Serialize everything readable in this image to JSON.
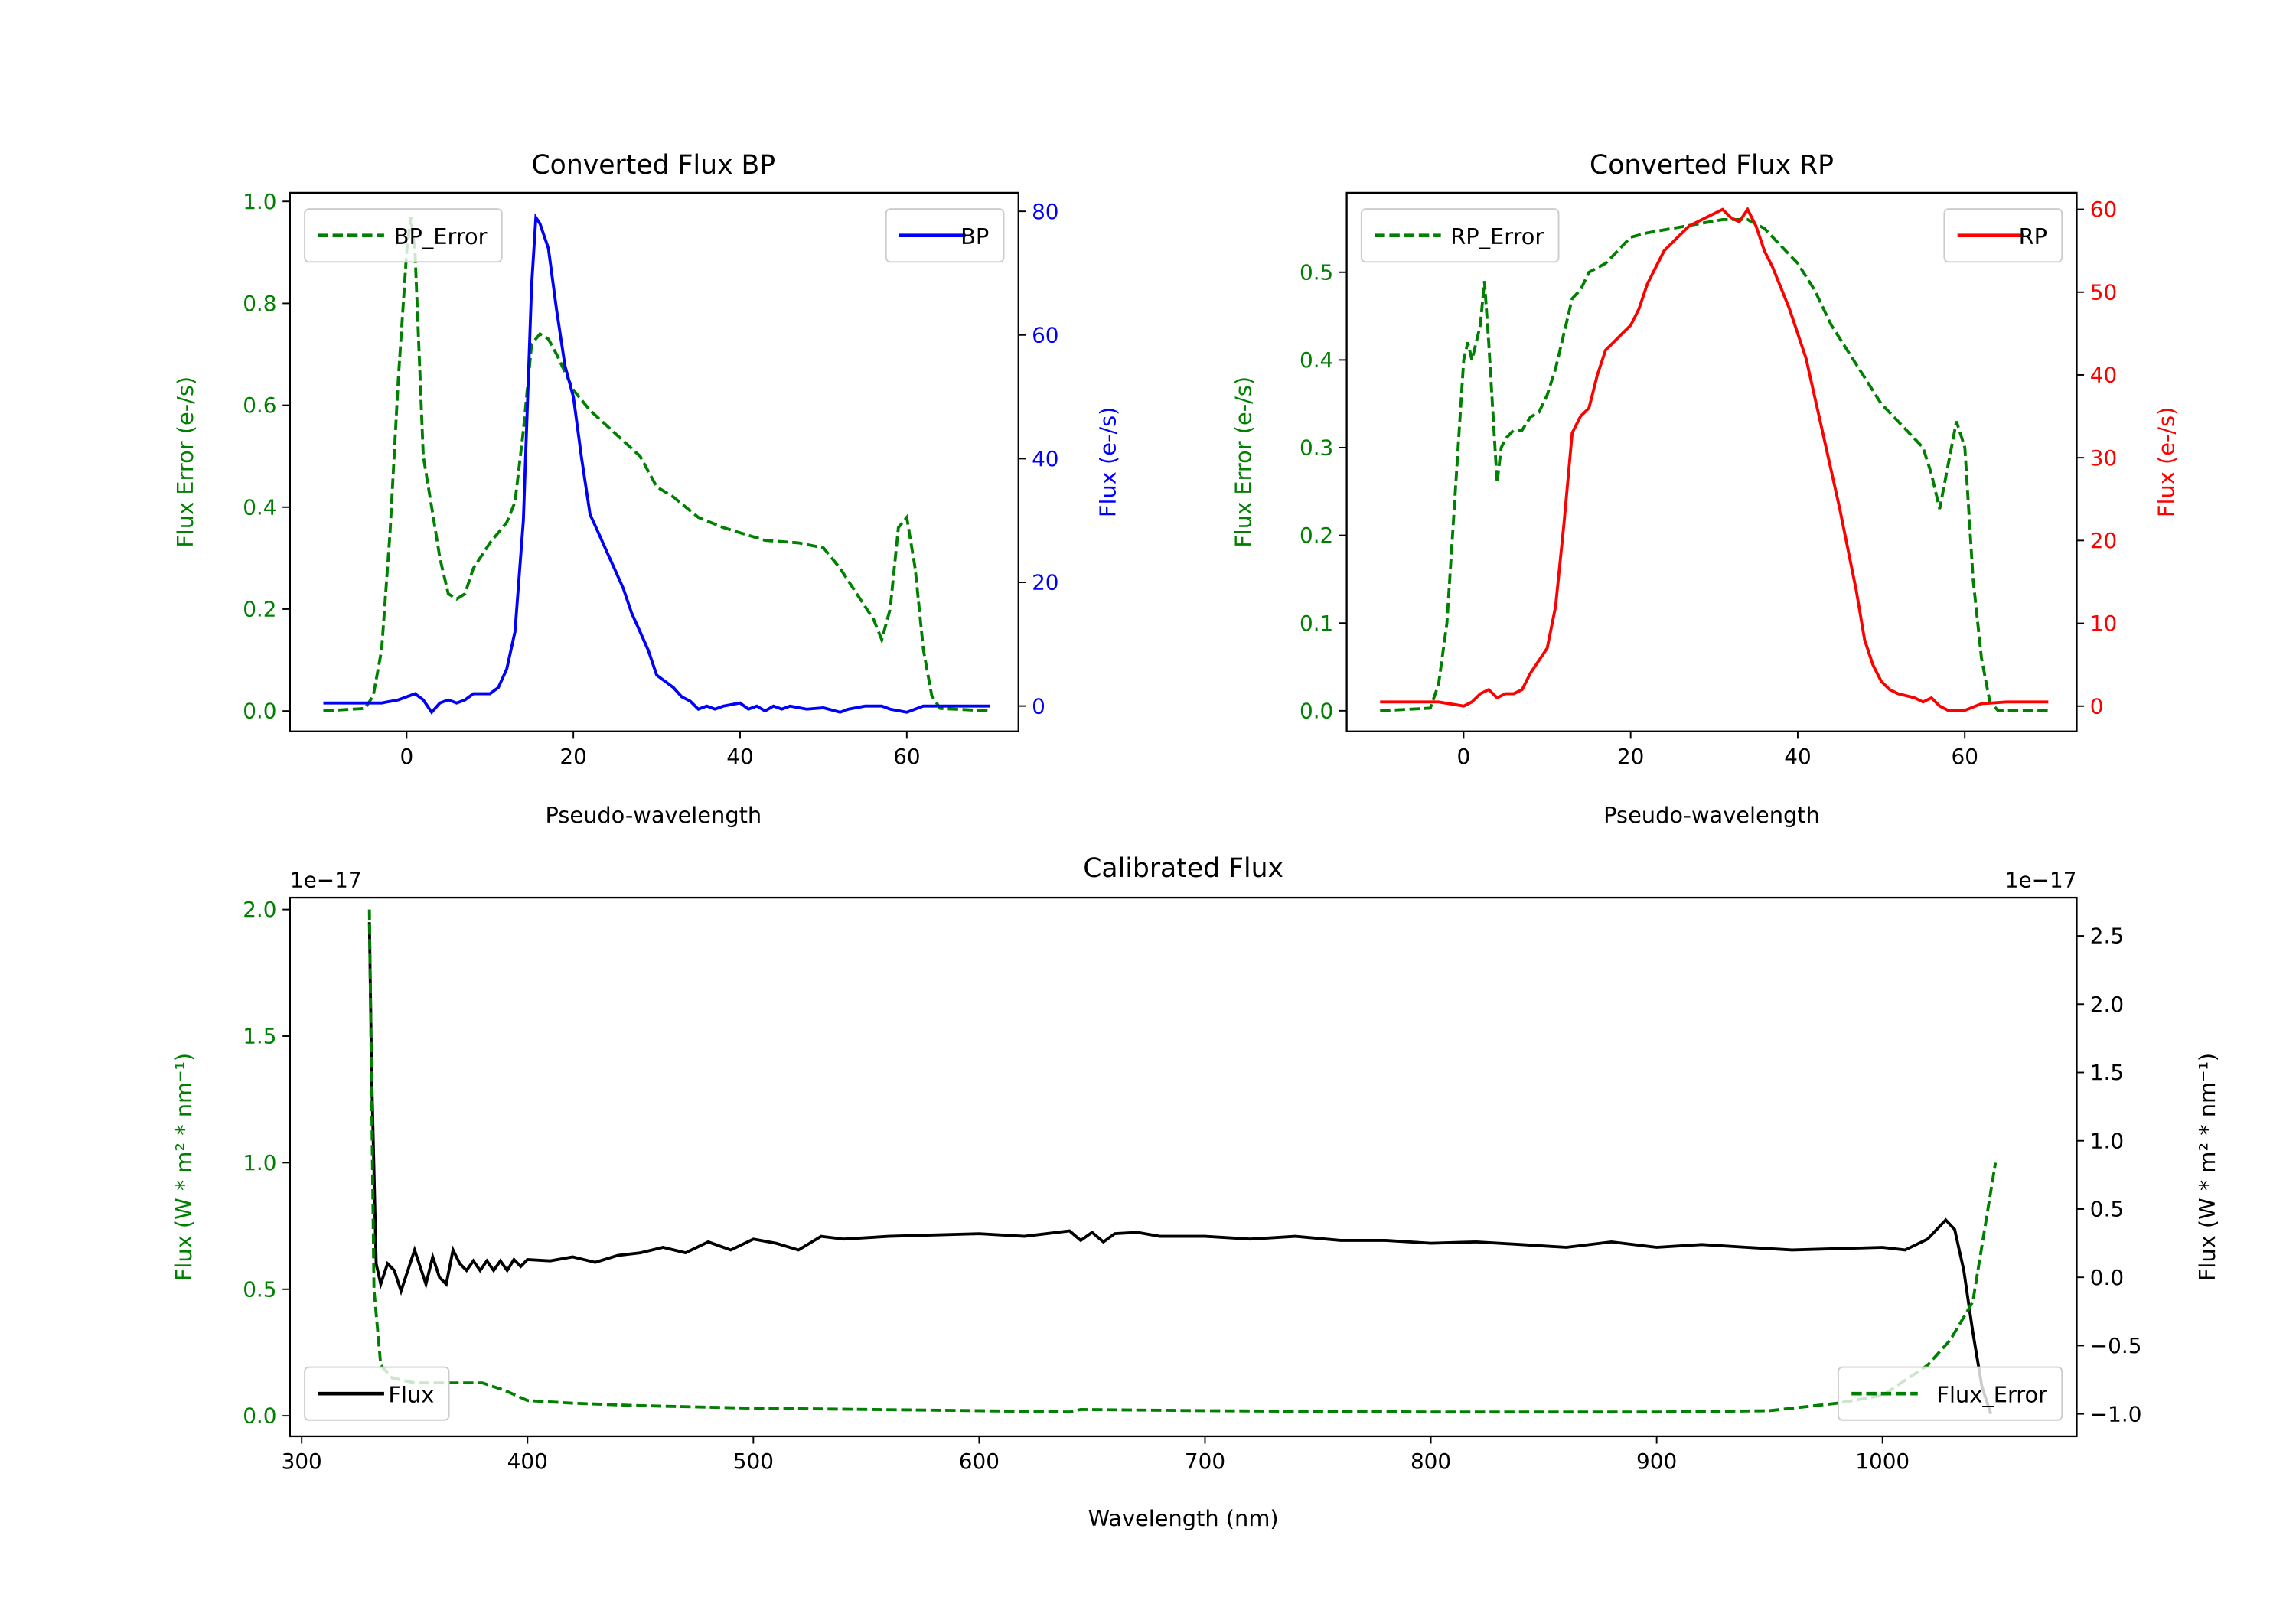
{
  "chart_data": [
    {
      "id": "bp",
      "type": "line",
      "title": "Converted Flux BP",
      "xlabel": "Pseudo-wavelength",
      "ylabel_left": "Flux Error (e-/s)",
      "ylabel_right": "Flux (e-/s)",
      "xlim": [
        -14,
        73.4
      ],
      "ylim_left": [
        -0.04,
        1.017
      ],
      "ylim_right": [
        -4.1,
        83
      ],
      "xticks": [
        0,
        20,
        40,
        60
      ],
      "xtick_labels": [
        "0",
        "20",
        "40",
        "60"
      ],
      "yticks_left": [
        0,
        0.2,
        0.4,
        0.6,
        0.8,
        1.0
      ],
      "ytick_labels_left": [
        "0.0",
        "0.2",
        "0.4",
        "0.6",
        "0.8",
        "1.0"
      ],
      "yticks_right": [
        0,
        20,
        40,
        60,
        80
      ],
      "ytick_labels_right": [
        "0",
        "20",
        "40",
        "60",
        "80"
      ],
      "left_color": "#008000",
      "right_color": "#0000ff",
      "series": [
        {
          "name": "BP_Error",
          "axis": "left",
          "style": "dashed",
          "color": "#008000",
          "legend": "upper-left",
          "x": [
            -10,
            -5,
            -4,
            -3,
            -2,
            -1,
            0,
            0.5,
            1,
            2,
            3,
            4,
            5,
            6,
            7,
            8,
            10,
            12,
            13,
            14,
            15,
            16,
            17,
            18,
            20,
            22,
            24,
            26,
            28,
            30,
            32,
            35,
            38,
            40,
            43,
            47,
            50,
            52,
            54,
            56,
            57,
            58,
            59,
            60,
            61,
            62,
            63,
            64,
            70
          ],
          "y": [
            0,
            0.005,
            0.03,
            0.12,
            0.35,
            0.65,
            0.9,
            0.97,
            0.9,
            0.5,
            0.4,
            0.3,
            0.23,
            0.22,
            0.23,
            0.28,
            0.33,
            0.37,
            0.41,
            0.55,
            0.72,
            0.74,
            0.73,
            0.7,
            0.63,
            0.59,
            0.56,
            0.53,
            0.5,
            0.44,
            0.42,
            0.38,
            0.36,
            0.35,
            0.335,
            0.33,
            0.32,
            0.28,
            0.23,
            0.18,
            0.14,
            0.2,
            0.36,
            0.38,
            0.28,
            0.12,
            0.03,
            0.005,
            0
          ]
        },
        {
          "name": "BP",
          "axis": "right",
          "style": "solid",
          "color": "#0000ff",
          "legend": "upper-right",
          "x": [
            -10,
            -3,
            -1,
            1,
            2,
            3,
            4,
            5,
            6,
            7,
            8,
            10,
            11,
            12,
            13,
            14,
            15,
            15.5,
            16,
            17,
            18,
            19,
            20,
            21,
            22,
            23,
            24,
            25,
            26,
            27,
            28,
            29,
            30,
            31,
            32,
            33,
            34,
            35,
            36,
            37,
            38,
            40,
            41,
            42,
            43,
            44,
            45,
            46,
            48,
            50,
            52,
            53,
            55,
            57,
            58,
            60,
            62,
            70
          ],
          "y": [
            0.5,
            0.5,
            1,
            2,
            1,
            -1,
            0.5,
            1,
            0.5,
            1,
            2,
            2,
            3,
            6,
            12,
            30,
            68,
            79,
            78,
            74,
            64,
            55,
            50,
            40,
            31,
            28,
            25,
            22,
            19,
            15,
            12,
            9,
            5,
            4,
            3,
            1.5,
            0.8,
            -0.5,
            0,
            -0.5,
            0,
            0.5,
            -0.5,
            0,
            -0.8,
            0,
            -0.5,
            0,
            -0.5,
            -0.3,
            -1,
            -0.5,
            0,
            0,
            -0.5,
            -1,
            0,
            0
          ]
        }
      ]
    },
    {
      "id": "rp",
      "type": "line",
      "title": "Converted Flux RP",
      "xlabel": "Pseudo-wavelength",
      "ylabel_left": "Flux Error (e-/s)",
      "ylabel_right": "Flux (e-/s)",
      "xlim": [
        -14,
        73.4
      ],
      "ylim_left": [
        -0.0235,
        0.5906
      ],
      "ylim_right": [
        -3.05,
        62
      ],
      "xticks": [
        0,
        20,
        40,
        60
      ],
      "xtick_labels": [
        "0",
        "20",
        "40",
        "60"
      ],
      "yticks_left": [
        0,
        0.1,
        0.2,
        0.3,
        0.4,
        0.5
      ],
      "ytick_labels_left": [
        "0.0",
        "0.1",
        "0.2",
        "0.3",
        "0.4",
        "0.5"
      ],
      "yticks_right": [
        0,
        10,
        20,
        30,
        40,
        50,
        60
      ],
      "ytick_labels_right": [
        "0",
        "10",
        "20",
        "30",
        "40",
        "50",
        "60"
      ],
      "left_color": "#008000",
      "right_color": "#ff0000",
      "series": [
        {
          "name": "RP_Error",
          "axis": "left",
          "style": "dashed",
          "color": "#008000",
          "legend": "upper-left",
          "x": [
            -10,
            -4,
            -3,
            -2,
            -1,
            0,
            0.5,
            1,
            1.5,
            2,
            2.5,
            3,
            4,
            4.5,
            5,
            6,
            7,
            8,
            9,
            10,
            11,
            12,
            13,
            14,
            15,
            17,
            19,
            20,
            22,
            25,
            28,
            31,
            34,
            36,
            38,
            40,
            42,
            44,
            46,
            48,
            50,
            52,
            54,
            55,
            56,
            57,
            58,
            59,
            60,
            61,
            62,
            63,
            64,
            70
          ],
          "y": [
            0,
            0.003,
            0.03,
            0.1,
            0.25,
            0.4,
            0.42,
            0.4,
            0.42,
            0.44,
            0.49,
            0.42,
            0.26,
            0.3,
            0.31,
            0.32,
            0.32,
            0.335,
            0.34,
            0.36,
            0.39,
            0.43,
            0.47,
            0.48,
            0.5,
            0.51,
            0.53,
            0.54,
            0.545,
            0.55,
            0.555,
            0.56,
            0.56,
            0.55,
            0.53,
            0.51,
            0.48,
            0.44,
            0.41,
            0.38,
            0.35,
            0.33,
            0.31,
            0.3,
            0.27,
            0.23,
            0.28,
            0.33,
            0.3,
            0.15,
            0.06,
            0.01,
            0,
            0
          ]
        },
        {
          "name": "RP",
          "axis": "right",
          "style": "solid",
          "color": "#ff0000",
          "legend": "upper-right",
          "x": [
            -10,
            -3,
            0,
            1,
            2,
            3,
            4,
            5,
            6,
            7,
            8,
            10,
            11,
            12,
            13,
            14,
            15,
            16,
            17,
            18,
            19,
            20,
            21,
            22,
            23,
            24,
            25,
            26,
            27,
            28,
            29,
            31,
            32,
            33,
            34,
            35,
            36,
            37,
            39,
            41,
            43,
            45,
            47,
            48,
            49,
            50,
            51,
            52,
            54,
            55,
            56,
            57,
            58,
            60,
            62,
            65,
            70
          ],
          "y": [
            0.5,
            0.5,
            0,
            0.5,
            1.5,
            2,
            1,
            1.5,
            1.5,
            2,
            4,
            7,
            12,
            22,
            33,
            35,
            36,
            40,
            43,
            44,
            45,
            46,
            48,
            51,
            53,
            55,
            56,
            57,
            58,
            58.5,
            59,
            60,
            59,
            58.5,
            60,
            58,
            55,
            53,
            48,
            42,
            33,
            24,
            14,
            8,
            5,
            3,
            2,
            1.5,
            1,
            0.5,
            1,
            0,
            -0.5,
            -0.5,
            0.3,
            0.5,
            0.5
          ]
        }
      ]
    },
    {
      "id": "cal",
      "type": "line",
      "title": "Calibrated Flux",
      "xlabel": "Wavelength (nm)",
      "ylabel_left": "Flux (W * m² * nm⁻¹)",
      "ylabel_right": "Flux (W * m² * nm⁻¹)",
      "offset_left": "1e−17",
      "offset_right": "1e−17",
      "xlim": [
        294.8,
        1086
      ],
      "ylim_left": [
        -0.081,
        2.047
      ],
      "ylim_right": [
        -1.164,
        2.78
      ],
      "xticks": [
        300,
        400,
        500,
        600,
        700,
        800,
        900,
        1000
      ],
      "xtick_labels": [
        "300",
        "400",
        "500",
        "600",
        "700",
        "800",
        "900",
        "1000"
      ],
      "yticks_left": [
        0,
        0.5,
        1.0,
        1.5,
        2.0
      ],
      "ytick_labels_left": [
        "0.0",
        "0.5",
        "1.0",
        "1.5",
        "2.0"
      ],
      "yticks_right": [
        -1.0,
        -0.5,
        0,
        0.5,
        1.0,
        1.5,
        2.0,
        2.5
      ],
      "ytick_labels_right": [
        "−1.0",
        "−0.5",
        "0.0",
        "0.5",
        "1.0",
        "1.5",
        "2.0",
        "2.5"
      ],
      "left_color": "#008000",
      "right_color": "#000000",
      "series": [
        {
          "name": "Flux",
          "axis": "right",
          "style": "solid",
          "color": "#000000",
          "legend": "lower-left",
          "x": [
            330,
            331,
            333,
            335,
            338,
            341,
            344,
            347,
            350,
            352,
            355,
            358,
            361,
            364,
            367,
            370,
            373,
            376,
            379,
            382,
            385,
            388,
            391,
            394,
            397,
            400,
            410,
            420,
            430,
            440,
            450,
            460,
            470,
            480,
            490,
            500,
            510,
            520,
            530,
            540,
            560,
            580,
            600,
            620,
            640,
            645,
            650,
            655,
            660,
            670,
            680,
            700,
            720,
            740,
            760,
            780,
            800,
            820,
            840,
            860,
            880,
            900,
            920,
            940,
            960,
            980,
            1000,
            1010,
            1020,
            1028,
            1032,
            1036,
            1040,
            1044,
            1048
          ],
          "y": [
            2.6,
            1.5,
            0.1,
            -0.05,
            0.1,
            0.05,
            -0.1,
            0.05,
            0.2,
            0.1,
            -0.05,
            0.15,
            0,
            -0.05,
            0.2,
            0.1,
            0.05,
            0.12,
            0.05,
            0.12,
            0.05,
            0.12,
            0.05,
            0.13,
            0.08,
            0.13,
            0.12,
            0.15,
            0.11,
            0.16,
            0.18,
            0.22,
            0.18,
            0.26,
            0.2,
            0.28,
            0.25,
            0.2,
            0.3,
            0.28,
            0.3,
            0.31,
            0.32,
            0.3,
            0.34,
            0.27,
            0.33,
            0.26,
            0.32,
            0.33,
            0.3,
            0.3,
            0.28,
            0.3,
            0.27,
            0.27,
            0.25,
            0.26,
            0.24,
            0.22,
            0.26,
            0.22,
            0.24,
            0.22,
            0.2,
            0.21,
            0.22,
            0.2,
            0.28,
            0.42,
            0.35,
            0.05,
            -0.4,
            -0.8,
            -1.0
          ]
        },
        {
          "name": "Flux_Error",
          "axis": "left",
          "style": "dashed",
          "color": "#008000",
          "legend": "lower-right",
          "x": [
            330,
            332,
            335,
            340,
            350,
            360,
            380,
            390,
            400,
            420,
            450,
            500,
            600,
            640,
            645,
            700,
            800,
            900,
            950,
            980,
            1000,
            1020,
            1030,
            1040,
            1050
          ],
          "y": [
            2.0,
            0.5,
            0.2,
            0.15,
            0.13,
            0.13,
            0.13,
            0.1,
            0.06,
            0.05,
            0.04,
            0.03,
            0.02,
            0.015,
            0.025,
            0.02,
            0.015,
            0.015,
            0.02,
            0.05,
            0.08,
            0.2,
            0.3,
            0.45,
            1.0
          ]
        }
      ]
    }
  ]
}
